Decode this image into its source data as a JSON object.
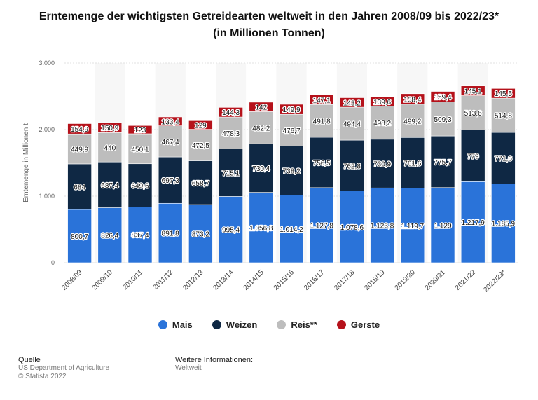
{
  "chart_data": {
    "type": "bar",
    "stacked": true,
    "title": "Erntemenge der wichtigsten Getreidearten weltweit in den Jahren 2008/09 bis 2022/23*",
    "subtitle": "(in Millionen Tonnen)",
    "xlabel": "",
    "ylabel": "Erntemenge in Millionen t",
    "ylim": [
      0,
      3000
    ],
    "yticks": [
      0,
      1000,
      2000,
      3000
    ],
    "ytick_labels": [
      "0",
      "1.000",
      "2.000",
      "3.000"
    ],
    "grid": true,
    "legend_position": "bottom",
    "categories": [
      "2008/09",
      "2009/10",
      "2010/11",
      "2011/12",
      "2012/13",
      "2013/14",
      "2014/15",
      "2015/16",
      "2016/17",
      "2017/18",
      "2018/19",
      "2019/20",
      "2020/21",
      "2021/22",
      "2022/23*"
    ],
    "series": [
      {
        "name": "Mais",
        "color": "#2a73d9",
        "values": [
          800.7,
          826.4,
          837.4,
          891.8,
          873.2,
          995.4,
          1056.8,
          1014.2,
          1127.8,
          1078.6,
          1123.8,
          1119.7,
          1129,
          1217.9,
          1185.9
        ],
        "labels": [
          "800,7",
          "826,4",
          "837,4",
          "891,8",
          "873,2",
          "995,4",
          "1.056,8",
          "1.014,2",
          "1.127,8",
          "1.078,6",
          "1.123,8",
          "1.119,7",
          "1.129",
          "1.217,9",
          "1.185,9"
        ]
      },
      {
        "name": "Weizen",
        "color": "#0f2844",
        "values": [
          684,
          687.4,
          649.6,
          697.3,
          658.7,
          715.1,
          730.4,
          738.2,
          756.5,
          762.8,
          730.9,
          761.6,
          775.7,
          779,
          771.6
        ],
        "labels": [
          "684",
          "687,4",
          "649,6",
          "697,3",
          "658,7",
          "715,1",
          "730,4",
          "738,2",
          "756,5",
          "762,8",
          "730,9",
          "761,6",
          "775,7",
          "779",
          "771,6"
        ]
      },
      {
        "name": "Reis**",
        "color": "#bdbdbd",
        "values": [
          449.9,
          440,
          450.1,
          467.4,
          472.5,
          478.3,
          482.2,
          476.7,
          491.8,
          494.4,
          498.2,
          499.2,
          509.3,
          513.6,
          514.8
        ],
        "labels": [
          "449,9",
          "440",
          "450,1",
          "467,4",
          "472,5",
          "478,3",
          "482,2",
          "476,7",
          "491,8",
          "494,4",
          "498,2",
          "499,2",
          "509,3",
          "513,6",
          "514,8"
        ]
      },
      {
        "name": "Gerste",
        "color": "#b5121b",
        "values": [
          154.9,
          150.9,
          123,
          133.4,
          129,
          144.3,
          142,
          149.9,
          147.1,
          143.2,
          139.6,
          158.4,
          159.4,
          145.1,
          145.5
        ],
        "labels": [
          "154,9",
          "150,9",
          "123",
          "133,4",
          "129",
          "144,3",
          "142",
          "149,9",
          "147,1",
          "143,2",
          "139,6",
          "158,4",
          "159,4",
          "145,1",
          "145,5"
        ]
      }
    ]
  },
  "footer": {
    "source_heading": "Quelle",
    "source_text": "US Department of Agriculture",
    "copyright": "© Statista 2022",
    "info_heading": "Weitere Informationen:",
    "info_text": "Weltweit"
  }
}
